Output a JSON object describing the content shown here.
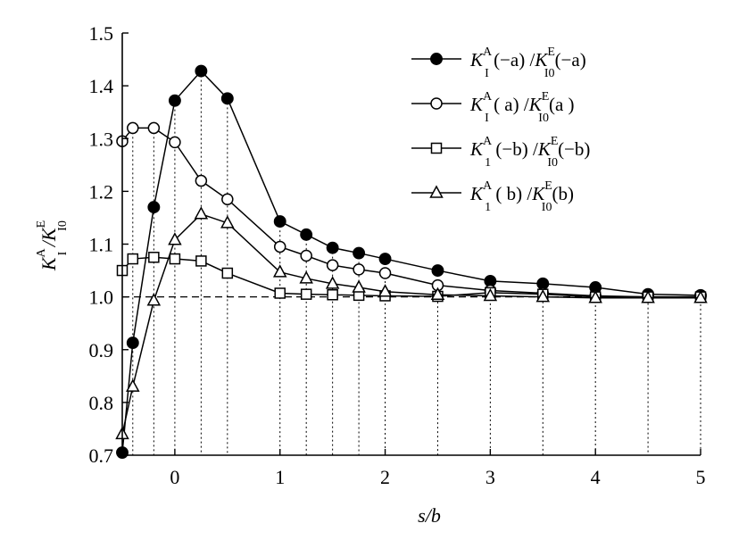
{
  "chart_data": {
    "type": "line",
    "xlabel": "s/b",
    "ylabel": "K_I^A / K_I0^E",
    "xlim": [
      -0.5,
      5
    ],
    "ylim": [
      0.7,
      1.5
    ],
    "x_ticks": [
      0,
      1,
      2,
      3,
      4,
      5
    ],
    "y_ticks": [
      0.7,
      0.8,
      0.9,
      1.0,
      1.1,
      1.2,
      1.3,
      1.4,
      1.5
    ],
    "reference_line": 1.0,
    "grid": "vertical dotted drop lines at data x positions",
    "legend_position": "top-right",
    "series": [
      {
        "name": "K_I^A (−a) / K_I0^E(−a)",
        "marker": "filled-circle",
        "x": [
          -0.5,
          -0.4,
          -0.2,
          0,
          0.25,
          0.5,
          1,
          1.25,
          1.5,
          1.75,
          2,
          2.5,
          3,
          3.5,
          4,
          4.5,
          5
        ],
        "y": [
          0.705,
          0.913,
          1.17,
          1.372,
          1.428,
          1.376,
          1.143,
          1.118,
          1.093,
          1.083,
          1.072,
          1.05,
          1.03,
          1.025,
          1.018,
          1.005,
          1.003
        ]
      },
      {
        "name": "K_I^A (a) / K_I0^E(a)",
        "marker": "open-circle",
        "x": [
          -0.5,
          -0.4,
          -0.2,
          0,
          0.25,
          0.5,
          1,
          1.25,
          1.5,
          1.75,
          2,
          2.5,
          3,
          3.5,
          4,
          4.5,
          5
        ],
        "y": [
          1.295,
          1.32,
          1.32,
          1.293,
          1.22,
          1.185,
          1.095,
          1.078,
          1.06,
          1.052,
          1.045,
          1.022,
          1.012,
          1.007,
          1.002,
          1.0,
          1.0
        ]
      },
      {
        "name": "K_I^A (−b) / K_I0^E(−b)",
        "marker": "open-square",
        "x": [
          -0.5,
          -0.4,
          -0.2,
          0,
          0.25,
          0.5,
          1,
          1.25,
          1.5,
          1.75,
          2,
          2.5,
          3,
          3.5,
          4,
          4.5,
          5
        ],
        "y": [
          1.05,
          1.072,
          1.075,
          1.072,
          1.068,
          1.045,
          1.007,
          1.005,
          1.004,
          1.003,
          1.002,
          1.001,
          1.008,
          1.005,
          1.0,
          1.0,
          1.0
        ]
      },
      {
        "name": "K_I^A (b) / K_I0^E(b)",
        "marker": "open-triangle",
        "x": [
          -0.5,
          -0.4,
          -0.2,
          0,
          0.25,
          0.5,
          1,
          1.25,
          1.5,
          1.75,
          2,
          2.5,
          3,
          3.5,
          4,
          4.5,
          5
        ],
        "y": [
          0.74,
          0.83,
          0.993,
          1.108,
          1.157,
          1.14,
          1.047,
          1.035,
          1.025,
          1.018,
          1.01,
          1.004,
          1.002,
          1.0,
          0.998,
          0.998,
          0.998
        ]
      }
    ]
  },
  "legend": [
    {
      "K": "K",
      "sub": "I",
      "sup": "A",
      "arg": "(−a)",
      "K2": "K",
      "sub2": "I0",
      "sup2": "E",
      "arg2": "(−a)"
    },
    {
      "K": "K",
      "sub": "I",
      "sup": "A",
      "arg": "( a)",
      "K2": "K",
      "sub2": "I0",
      "sup2": "E",
      "arg2": "(a )"
    },
    {
      "K": "K",
      "sub": "1",
      "sup": "A",
      "arg": "(−b)",
      "K2": "K",
      "sub2": "I0",
      "sup2": "E",
      "arg2": "(−b)"
    },
    {
      "K": "K",
      "sub": "1",
      "sup": "A",
      "arg": "( b)",
      "K2": "K",
      "sub2": "I0",
      "sup2": "E",
      "arg2": "(b)"
    }
  ],
  "axis_titles": {
    "x": "s/b",
    "y_K": "K",
    "y_sub": "I",
    "y_sup": "A",
    "y_K2": "K",
    "y_sub2": "I0",
    "y_sup2": "E"
  }
}
